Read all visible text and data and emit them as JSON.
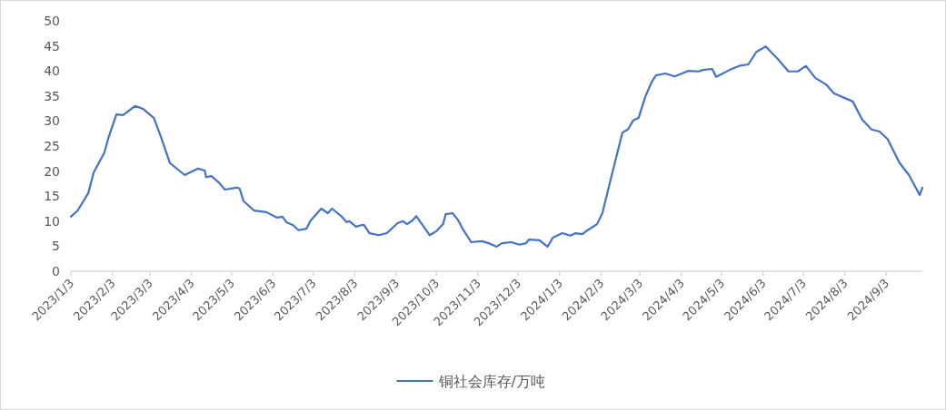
{
  "chart_data": {
    "type": "line",
    "x": [
      "2023-01-03",
      "2023-01-08",
      "2023-01-16",
      "2023-01-20",
      "2023-01-28",
      "2023-01-31",
      "2023-02-06",
      "2023-02-11",
      "2023-02-20",
      "2023-02-26",
      "2023-03-06",
      "2023-03-11",
      "2023-03-18",
      "2023-03-29",
      "2023-04-08",
      "2023-04-13",
      "2023-04-14",
      "2023-04-18",
      "2023-04-24",
      "2023-04-28",
      "2023-05-07",
      "2023-05-09",
      "2023-05-12",
      "2023-05-20",
      "2023-05-29",
      "2023-06-06",
      "2023-06-10",
      "2023-06-13",
      "2023-06-18",
      "2023-06-22",
      "2023-06-28",
      "2023-07-01",
      "2023-07-09",
      "2023-07-14",
      "2023-07-17",
      "2023-07-24",
      "2023-07-28",
      "2023-07-30",
      "2023-08-04",
      "2023-08-08",
      "2023-08-10",
      "2023-08-14",
      "2023-08-21",
      "2023-08-27",
      "2023-09-04",
      "2023-09-08",
      "2023-09-11",
      "2023-09-15",
      "2023-09-18",
      "2023-09-28",
      "2023-10-03",
      "2023-10-08",
      "2023-10-10",
      "2023-10-15",
      "2023-10-19",
      "2023-10-23",
      "2023-10-29",
      "2023-11-06",
      "2023-11-11",
      "2023-11-17",
      "2023-11-21",
      "2023-11-28",
      "2023-12-04",
      "2023-12-09",
      "2023-12-11",
      "2023-12-19",
      "2023-12-25",
      "2023-12-29",
      "2024-01-05",
      "2024-01-11",
      "2024-01-15",
      "2024-01-20",
      "2024-01-24",
      "2024-01-31",
      "2024-02-04",
      "2024-02-11",
      "2024-02-19",
      "2024-02-23",
      "2024-02-27",
      "2024-03-02",
      "2024-03-07",
      "2024-03-12",
      "2024-03-15",
      "2024-03-22",
      "2024-03-29",
      "2024-04-08",
      "2024-04-16",
      "2024-04-19",
      "2024-04-26",
      "2024-04-29",
      "2024-05-09",
      "2024-05-16",
      "2024-05-23",
      "2024-05-29",
      "2024-06-05",
      "2024-06-14",
      "2024-06-22",
      "2024-06-29",
      "2024-07-05",
      "2024-07-12",
      "2024-07-20",
      "2024-07-26",
      "2024-08-09",
      "2024-08-16",
      "2024-08-23",
      "2024-08-29",
      "2024-09-04",
      "2024-09-13",
      "2024-09-20",
      "2024-09-28",
      "2024-09-30"
    ],
    "series": [
      {
        "name": "铜社会库存/万吨",
        "color": "#4472c4",
        "values": [
          10.9,
          12.1,
          15.6,
          19.7,
          23.7,
          26.6,
          31.3,
          31.2,
          33.0,
          32.4,
          30.6,
          27.0,
          21.6,
          19.2,
          20.5,
          20.1,
          18.8,
          19.0,
          17.6,
          16.3,
          16.7,
          16.5,
          14.0,
          12.1,
          11.8,
          10.7,
          10.9,
          9.8,
          9.2,
          8.2,
          8.5,
          10.1,
          12.5,
          11.6,
          12.5,
          11.0,
          9.8,
          10.0,
          8.9,
          9.2,
          9.2,
          7.6,
          7.2,
          7.6,
          9.6,
          10.0,
          9.4,
          10.1,
          11.0,
          7.2,
          8.0,
          9.4,
          11.4,
          11.6,
          10.3,
          8.3,
          5.8,
          6.0,
          5.6,
          4.9,
          5.6,
          5.8,
          5.3,
          5.6,
          6.3,
          6.2,
          4.9,
          6.7,
          7.6,
          7.1,
          7.6,
          7.4,
          8.2,
          9.4,
          11.6,
          19.2,
          27.7,
          28.3,
          30.1,
          30.6,
          34.8,
          37.9,
          39.1,
          39.5,
          38.9,
          40.0,
          39.9,
          40.2,
          40.4,
          38.8,
          40.2,
          41.0,
          41.3,
          43.8,
          44.9,
          42.4,
          39.9,
          39.9,
          41.0,
          38.6,
          37.3,
          35.5,
          33.9,
          30.3,
          28.3,
          27.9,
          26.4,
          21.6,
          19.2,
          15.2,
          16.7
        ]
      }
    ],
    "xlim": [
      "2023-01-03",
      "2024-09-30"
    ],
    "xticks": [
      {
        "value": "2023-01-03",
        "label": "2023/1/3"
      },
      {
        "value": "2023-02-03",
        "label": "2023/2/3"
      },
      {
        "value": "2023-03-03",
        "label": "2023/3/3"
      },
      {
        "value": "2023-04-03",
        "label": "2023/4/3"
      },
      {
        "value": "2023-05-03",
        "label": "2023/5/3"
      },
      {
        "value": "2023-06-03",
        "label": "2023/6/3"
      },
      {
        "value": "2023-07-03",
        "label": "2023/7/3"
      },
      {
        "value": "2023-08-03",
        "label": "2023/8/3"
      },
      {
        "value": "2023-09-03",
        "label": "2023/9/3"
      },
      {
        "value": "2023-10-03",
        "label": "2023/10/3"
      },
      {
        "value": "2023-11-03",
        "label": "2023/11/3"
      },
      {
        "value": "2023-12-03",
        "label": "2023/12/3"
      },
      {
        "value": "2024-01-03",
        "label": "2024/1/3"
      },
      {
        "value": "2024-02-03",
        "label": "2024/2/3"
      },
      {
        "value": "2024-03-03",
        "label": "2024/3/3"
      },
      {
        "value": "2024-04-03",
        "label": "2024/4/3"
      },
      {
        "value": "2024-05-03",
        "label": "2024/5/3"
      },
      {
        "value": "2024-06-03",
        "label": "2024/6/3"
      },
      {
        "value": "2024-07-03",
        "label": "2024/7/3"
      },
      {
        "value": "2024-08-03",
        "label": "2024/8/3"
      },
      {
        "value": "2024-09-03",
        "label": "2024/9/3"
      }
    ],
    "ylim": [
      0,
      50
    ],
    "yticks": [
      0,
      5,
      10,
      15,
      20,
      25,
      30,
      35,
      40,
      45,
      50
    ],
    "legend": "bottom"
  }
}
